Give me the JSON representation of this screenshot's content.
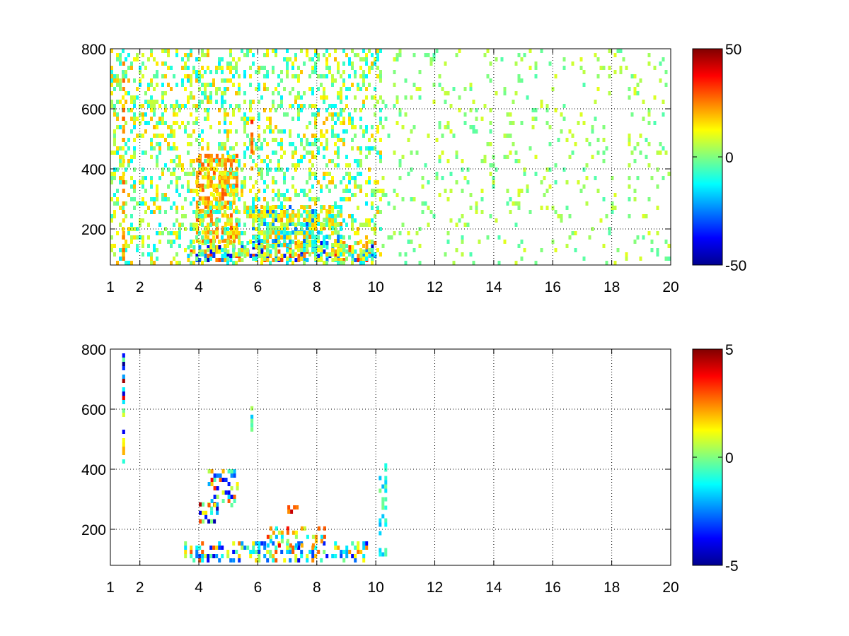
{
  "chart_data": [
    {
      "type": "heatmap",
      "title": "",
      "xlabel": "",
      "ylabel": "",
      "x_range": [
        1,
        20
      ],
      "y_range": [
        80,
        800
      ],
      "xticks": [
        1,
        2,
        4,
        6,
        8,
        10,
        12,
        14,
        16,
        18,
        20
      ],
      "xtick_labels": [
        "1",
        "2",
        "4",
        "6",
        "8",
        "10",
        "12",
        "14",
        "16",
        "18",
        "20"
      ],
      "yticks": [
        200,
        400,
        600,
        800
      ],
      "ytick_labels": [
        "200",
        "400",
        "600",
        "800"
      ],
      "grid": true,
      "colormap": "jet",
      "clim": [
        -50,
        50
      ],
      "colorbar_ticks": [
        -50,
        0,
        50
      ],
      "colorbar_labels": [
        "-50",
        "0",
        "50"
      ],
      "features": [
        {
          "label": "strong band",
          "x": [
            3.6,
            10
          ],
          "y": [
            90,
            160
          ],
          "value_range": [
            -45,
            35
          ]
        },
        {
          "label": "upper blob",
          "x": [
            3.9,
            5.3
          ],
          "y": [
            160,
            450
          ],
          "value_range": [
            10,
            30
          ]
        },
        {
          "label": "mid blob",
          "x": [
            5.8,
            8.8
          ],
          "y": [
            150,
            280
          ],
          "value_range": [
            -30,
            25
          ]
        },
        {
          "label": "dense speckle",
          "x": [
            1,
            10.2
          ],
          "y": [
            80,
            800
          ],
          "value_range": [
            -15,
            20
          ]
        },
        {
          "label": "sparse speckle",
          "x": [
            10.2,
            20
          ],
          "y": [
            80,
            800
          ],
          "value_range": [
            -5,
            10
          ]
        },
        {
          "label": "vertical streak",
          "x": [
            1.4,
            1.5
          ],
          "y": [
            80,
            800
          ],
          "value_range": [
            15,
            30
          ]
        },
        {
          "label": "vertical streak",
          "x": [
            5.75,
            5.85
          ],
          "y": [
            400,
            620
          ],
          "value_range": [
            20,
            35
          ]
        }
      ]
    },
    {
      "type": "heatmap",
      "title": "",
      "xlabel": "",
      "ylabel": "",
      "x_range": [
        1,
        20
      ],
      "y_range": [
        80,
        800
      ],
      "xticks": [
        1,
        2,
        4,
        6,
        8,
        10,
        12,
        14,
        16,
        18,
        20
      ],
      "xtick_labels": [
        "1",
        "2",
        "4",
        "6",
        "8",
        "10",
        "12",
        "14",
        "16",
        "18",
        "20"
      ],
      "yticks": [
        200,
        400,
        600,
        800
      ],
      "ytick_labels": [
        "200",
        "400",
        "600",
        "800"
      ],
      "grid": true,
      "colormap": "jet",
      "clim": [
        -5,
        5
      ],
      "colorbar_ticks": [
        -5,
        0,
        5
      ],
      "colorbar_labels": [
        "-5",
        "0",
        "5"
      ],
      "features": [
        {
          "label": "low band",
          "x": [
            3.5,
            9.7
          ],
          "y": [
            90,
            160
          ],
          "value_range": [
            -4,
            3
          ]
        },
        {
          "label": "cluster",
          "x": [
            4.0,
            4.6
          ],
          "y": [
            220,
            290
          ],
          "value_range": [
            -5,
            5
          ]
        },
        {
          "label": "cluster",
          "x": [
            4.3,
            5.3
          ],
          "y": [
            280,
            400
          ],
          "value_range": [
            -4,
            4
          ]
        },
        {
          "label": "cluster",
          "x": [
            6.3,
            8.3
          ],
          "y": [
            140,
            210
          ],
          "value_range": [
            -2,
            4
          ]
        },
        {
          "label": "cluster",
          "x": [
            7.0,
            7.5
          ],
          "y": [
            255,
            280
          ],
          "value_range": [
            2,
            5
          ]
        },
        {
          "label": "vertical streak",
          "x": [
            1.4,
            1.5
          ],
          "y": [
            410,
            800
          ],
          "value_range": [
            -5,
            5
          ]
        },
        {
          "label": "vertical streak",
          "x": [
            5.75,
            5.85
          ],
          "y": [
            530,
            610
          ],
          "value_range": [
            -2,
            2
          ]
        },
        {
          "label": "small patch",
          "x": [
            10.1,
            10.3
          ],
          "y": [
            110,
            420
          ],
          "value_range": [
            -2,
            0
          ]
        }
      ]
    }
  ]
}
